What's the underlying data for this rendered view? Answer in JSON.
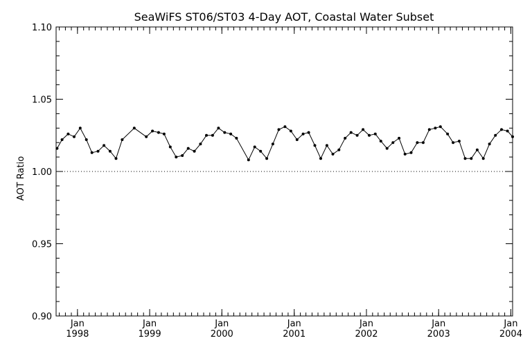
{
  "chart_data": {
    "type": "line",
    "title": "SeaWiFS ST06/ST03 4-Day AOT, Coastal Water Subset",
    "ylabel": "AOT Ratio",
    "xlabel": "",
    "ylim": [
      0.9,
      1.1
    ],
    "xlim": [
      "1997-09-15",
      "2004-01-10"
    ],
    "reference_line": {
      "y": 1.0,
      "style": "dotted"
    },
    "y_ticks": [
      "0.90",
      "0.95",
      "1.00",
      "1.05",
      "1.10"
    ],
    "x_ticks": [
      {
        "date": "1998-01-01",
        "month": "Jan",
        "year": "1998"
      },
      {
        "date": "1999-01-01",
        "month": "Jan",
        "year": "1999"
      },
      {
        "date": "2000-01-01",
        "month": "Jan",
        "year": "2000"
      },
      {
        "date": "2001-01-01",
        "month": "Jan",
        "year": "2001"
      },
      {
        "date": "2002-01-01",
        "month": "Jan",
        "year": "2002"
      },
      {
        "date": "2003-01-01",
        "month": "Jan",
        "year": "2003"
      },
      {
        "date": "2004-01-01",
        "month": "Jan",
        "year": "2004"
      }
    ],
    "series": [
      {
        "x": [
          "1997-09-20",
          "1997-10-15",
          "1997-11-15",
          "1997-12-15",
          "1998-01-15",
          "1998-02-15",
          "1998-03-15",
          "1998-04-15",
          "1998-05-15",
          "1998-06-15",
          "1998-07-15",
          "1998-08-15",
          "1998-10-15",
          "1998-12-15",
          "1999-01-15",
          "1999-02-15",
          "1999-03-15",
          "1999-04-15",
          "1999-05-15",
          "1999-06-15",
          "1999-07-15",
          "1999-08-15",
          "1999-09-15",
          "1999-10-15",
          "1999-11-15",
          "1999-12-15",
          "2000-01-15",
          "2000-02-15",
          "2000-03-15",
          "2000-05-15",
          "2000-06-15",
          "2000-07-15",
          "2000-08-15",
          "2000-09-15",
          "2000-10-15",
          "2000-11-15",
          "2000-12-15",
          "2001-01-15",
          "2001-02-15",
          "2001-03-15",
          "2001-04-15",
          "2001-05-15",
          "2001-06-15",
          "2001-07-15",
          "2001-08-15",
          "2001-09-15",
          "2001-10-15",
          "2001-11-15",
          "2001-12-15",
          "2002-01-15",
          "2002-02-15",
          "2002-03-15",
          "2002-04-15",
          "2002-05-15",
          "2002-06-15",
          "2002-07-15",
          "2002-08-15",
          "2002-09-15",
          "2002-10-15",
          "2002-11-15",
          "2002-12-15",
          "2003-01-10",
          "2003-02-15",
          "2003-03-15",
          "2003-04-15",
          "2003-05-15",
          "2003-06-15",
          "2003-07-15",
          "2003-08-15",
          "2003-09-15",
          "2003-10-15",
          "2003-11-15",
          "2003-12-15",
          "2004-01-10"
        ],
        "values": [
          1.016,
          1.022,
          1.026,
          1.024,
          1.03,
          1.022,
          1.013,
          1.014,
          1.018,
          1.014,
          1.009,
          1.022,
          1.03,
          1.024,
          1.028,
          1.027,
          1.026,
          1.017,
          1.01,
          1.011,
          1.016,
          1.014,
          1.019,
          1.025,
          1.025,
          1.03,
          1.027,
          1.026,
          1.023,
          1.008,
          1.017,
          1.014,
          1.009,
          1.019,
          1.029,
          1.031,
          1.028,
          1.022,
          1.026,
          1.027,
          1.018,
          1.009,
          1.018,
          1.012,
          1.015,
          1.023,
          1.027,
          1.025,
          1.029,
          1.025,
          1.026,
          1.021,
          1.016,
          1.02,
          1.023,
          1.012,
          1.013,
          1.02,
          1.02,
          1.029,
          1.03,
          1.031,
          1.026,
          1.02,
          1.021,
          1.009,
          1.009,
          1.015,
          1.009,
          1.019,
          1.025,
          1.029,
          1.028,
          1.024
        ]
      }
    ]
  }
}
